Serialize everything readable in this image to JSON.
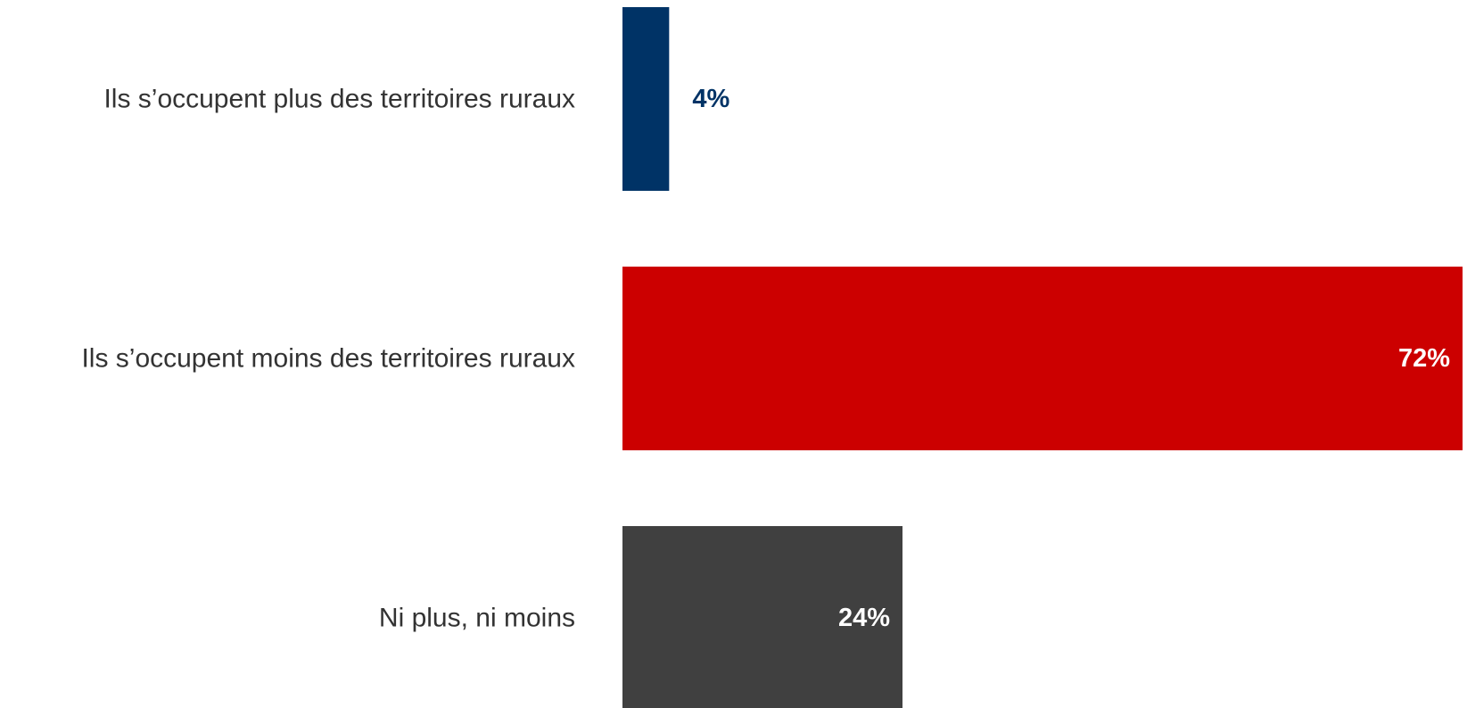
{
  "chart_data": {
    "type": "bar",
    "orientation": "horizontal",
    "categories": [
      "Ils s’occupent plus des territoires ruraux",
      "Ils s’occupent moins des territoires ruraux",
      "Ni plus, ni moins"
    ],
    "values": [
      4,
      72,
      24
    ],
    "value_labels": [
      "4%",
      "72%",
      "24%"
    ],
    "colors": [
      "#003366",
      "#CC0000",
      "#404040"
    ],
    "value_label_colors": [
      "#003366",
      "#FFFFFF",
      "#FFFFFF"
    ],
    "value_label_placement": [
      "outside",
      "inside-end",
      "inside-end"
    ],
    "xlim": [
      0,
      72
    ],
    "grid": false,
    "legend": "none",
    "axes_visible": false
  }
}
